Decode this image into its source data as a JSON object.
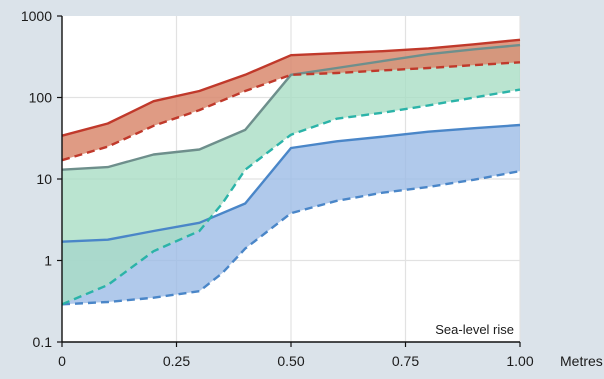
{
  "chart_data": {
    "type": "area",
    "title": "",
    "xlabel": "",
    "ylabel": "",
    "x_unit_label": "Metres",
    "annotation": "Sea-level rise",
    "y_scale": "log",
    "xlim": [
      0,
      1.0
    ],
    "ylim": [
      0.1,
      1000
    ],
    "x_ticks": [
      "0",
      "0.25",
      "0.50",
      "0.75",
      "1.00"
    ],
    "x_tick_values": [
      0,
      0.25,
      0.5,
      0.75,
      1.0
    ],
    "y_ticks": [
      "0.1",
      "1",
      "10",
      "100",
      "1000"
    ],
    "y_tick_values": [
      0.1,
      1,
      10,
      100,
      1000
    ],
    "grid": true,
    "series": [
      {
        "color": "#4a86c8",
        "fill": "#9cbbe6",
        "upper": {
          "x": [
            0,
            0.1,
            0.2,
            0.3,
            0.4,
            0.5,
            0.6,
            0.7,
            0.8,
            0.9,
            1.0
          ],
          "y": [
            1.7,
            1.8,
            2.3,
            2.9,
            5.0,
            24,
            29,
            33,
            38,
            42,
            46
          ]
        },
        "lower": {
          "x": [
            0,
            0.1,
            0.2,
            0.3,
            0.35,
            0.4,
            0.5,
            0.6,
            0.7,
            0.8,
            0.9,
            1.0
          ],
          "y": [
            0.29,
            0.31,
            0.35,
            0.42,
            0.7,
            1.4,
            3.8,
            5.4,
            6.8,
            8.0,
            9.8,
            12.5
          ]
        }
      },
      {
        "color": "#2bb3a8",
        "fill": "#a9ddc4",
        "line_color_upper": "#6e8f8c",
        "upper": {
          "x": [
            0,
            0.1,
            0.2,
            0.3,
            0.4,
            0.5,
            0.6,
            0.7,
            0.8,
            0.9,
            1.0
          ],
          "y": [
            13,
            14,
            20,
            23,
            40,
            190,
            230,
            280,
            340,
            390,
            440
          ]
        },
        "lower": {
          "x": [
            0,
            0.1,
            0.2,
            0.3,
            0.35,
            0.4,
            0.5,
            0.6,
            0.7,
            0.8,
            0.9,
            1.0
          ],
          "y": [
            0.29,
            0.5,
            1.3,
            2.3,
            5.0,
            13,
            35,
            55,
            65,
            80,
            100,
            125
          ]
        }
      },
      {
        "color": "#c0392b",
        "fill": "#d98a6e",
        "upper": {
          "x": [
            0,
            0.1,
            0.2,
            0.3,
            0.4,
            0.5,
            0.6,
            0.7,
            0.8,
            0.9,
            1.0
          ],
          "y": [
            34,
            48,
            90,
            120,
            190,
            330,
            350,
            370,
            400,
            450,
            510
          ]
        },
        "lower": {
          "x": [
            0,
            0.1,
            0.2,
            0.3,
            0.4,
            0.5,
            0.6,
            0.7,
            0.8,
            0.9,
            1.0
          ],
          "y": [
            17,
            25,
            45,
            70,
            120,
            190,
            200,
            215,
            230,
            250,
            270
          ]
        }
      }
    ]
  }
}
